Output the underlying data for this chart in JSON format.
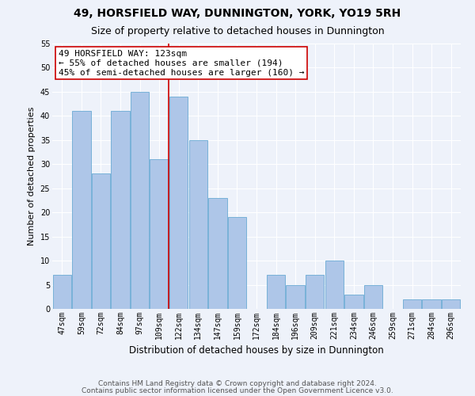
{
  "title1": "49, HORSFIELD WAY, DUNNINGTON, YORK, YO19 5RH",
  "title2": "Size of property relative to detached houses in Dunnington",
  "xlabel": "Distribution of detached houses by size in Dunnington",
  "ylabel": "Number of detached properties",
  "categories": [
    "47sqm",
    "59sqm",
    "72sqm",
    "84sqm",
    "97sqm",
    "109sqm",
    "122sqm",
    "134sqm",
    "147sqm",
    "159sqm",
    "172sqm",
    "184sqm",
    "196sqm",
    "209sqm",
    "221sqm",
    "234sqm",
    "246sqm",
    "259sqm",
    "271sqm",
    "284sqm",
    "296sqm"
  ],
  "values": [
    7,
    41,
    28,
    41,
    45,
    31,
    44,
    35,
    23,
    19,
    0,
    7,
    5,
    7,
    10,
    3,
    5,
    0,
    2,
    2,
    2
  ],
  "bar_color": "#aec6e8",
  "bar_edgecolor": "#6aaad4",
  "vline_index": 6,
  "vline_color": "#cc0000",
  "annotation_text": "49 HORSFIELD WAY: 123sqm\n← 55% of detached houses are smaller (194)\n45% of semi-detached houses are larger (160) →",
  "annotation_box_facecolor": "#ffffff",
  "annotation_box_edgecolor": "#cc0000",
  "ylim_max": 55,
  "yticks": [
    0,
    5,
    10,
    15,
    20,
    25,
    30,
    35,
    40,
    45,
    50,
    55
  ],
  "footer1": "Contains HM Land Registry data © Crown copyright and database right 2024.",
  "footer2": "Contains public sector information licensed under the Open Government Licence v3.0.",
  "background_color": "#eef2fa",
  "grid_color": "#ffffff",
  "title1_fontsize": 10,
  "title2_fontsize": 9,
  "xlabel_fontsize": 8.5,
  "ylabel_fontsize": 8,
  "tick_fontsize": 7,
  "annotation_fontsize": 8,
  "footer_fontsize": 6.5
}
